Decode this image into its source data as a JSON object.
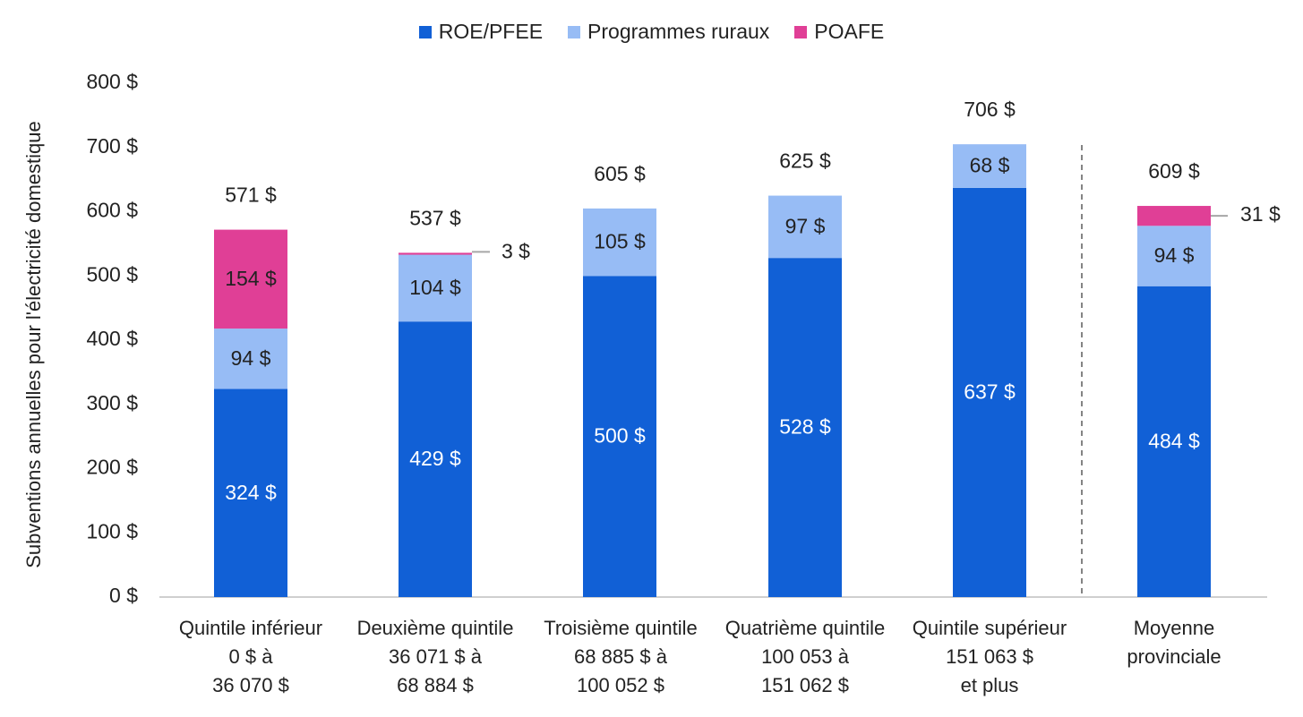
{
  "chart_data": {
    "type": "bar",
    "stacked": true,
    "ylabel": "Subventions annuelles pour l'électricité domestique",
    "ylim": [
      0,
      800
    ],
    "y_ticks": [
      "0 $",
      "100 $",
      "200 $",
      "300 $",
      "400 $",
      "500 $",
      "600 $",
      "700 $",
      "800 $"
    ],
    "grid": false,
    "legend_position": "top-center",
    "categories": [
      [
        "Quintile inférieur",
        "0 $ à",
        "36 070 $"
      ],
      [
        "Deuxième quintile",
        "36 071 $ à",
        "68 884 $"
      ],
      [
        "Troisième quintile",
        "68 885 $ à",
        "100 052 $"
      ],
      [
        "Quatrième quintile",
        "100 053 à",
        "151 062 $"
      ],
      [
        "Quintile supérieur",
        "151 063 $",
        "et plus"
      ],
      [
        "Moyenne",
        "provinciale"
      ]
    ],
    "series": [
      {
        "name": "ROE/PFEE",
        "color": "#1160D6",
        "values": [
          324,
          429,
          500,
          528,
          637,
          484
        ],
        "labels": [
          "324 $",
          "429 $",
          "500 $",
          "528 $",
          "637 $",
          "484 $"
        ]
      },
      {
        "name": "Programmes ruraux",
        "color": "#97BCF5",
        "values": [
          94,
          104,
          105,
          97,
          68,
          94
        ],
        "labels": [
          "94 $",
          "104 $",
          "105 $",
          "97 $",
          "68 $",
          "94 $"
        ]
      },
      {
        "name": "POAFE",
        "color": "#E03F96",
        "values": [
          154,
          3,
          0,
          0,
          0,
          31
        ],
        "labels": [
          "154 $",
          "3 $",
          "",
          "",
          "",
          "31 $"
        ]
      }
    ],
    "totals": [
      "571 $",
      "537 $",
      "605 $",
      "625 $",
      "706 $",
      "609 $"
    ]
  }
}
